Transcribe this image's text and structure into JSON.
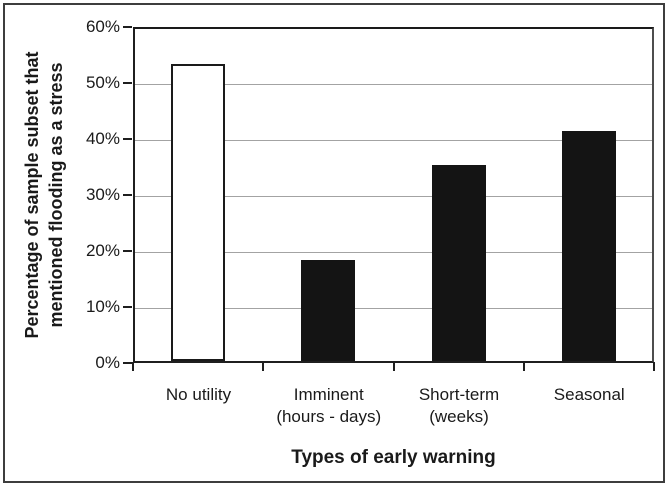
{
  "chart_data": {
    "type": "bar",
    "categories": [
      "No utility",
      "Imminent (hours - days)",
      "Short-term (weeks)",
      "Seasonal"
    ],
    "category_label_lines": [
      [
        "No utility"
      ],
      [
        "Imminent",
        "(hours - days)"
      ],
      [
        "Short-term",
        "(weeks)"
      ],
      [
        "Seasonal"
      ]
    ],
    "values": [
      53,
      18,
      35,
      41
    ],
    "unit": "%",
    "xlabel": "Types of early warning",
    "ylabel": "Percentage of sample subset that mentioned flooding as a stress",
    "ylabel_lines": [
      "Percentage of sample subset that",
      "mentioned flooding as a stress"
    ],
    "ylim": [
      0,
      60
    ],
    "ytick_interval": 10,
    "ytick_labels": [
      "0%",
      "10%",
      "20%",
      "30%",
      "40%",
      "50%",
      "60%"
    ],
    "grid": "horizontal",
    "legend": "none",
    "bar_styles": [
      {
        "fill": "#ffffff",
        "stroke": "#1a1a1a"
      },
      {
        "fill": "#141414",
        "stroke": "#141414"
      },
      {
        "fill": "#141414",
        "stroke": "#141414"
      },
      {
        "fill": "#141414",
        "stroke": "#141414"
      }
    ],
    "colors": {
      "gridline": "#a3a3a3",
      "axis": "#1f1f1f",
      "plot_top_line": "#1a1a1a",
      "plot_right_line": "#4d4d4d",
      "figure_border": "#3d3d3d",
      "text": "#1a1a1a"
    }
  }
}
